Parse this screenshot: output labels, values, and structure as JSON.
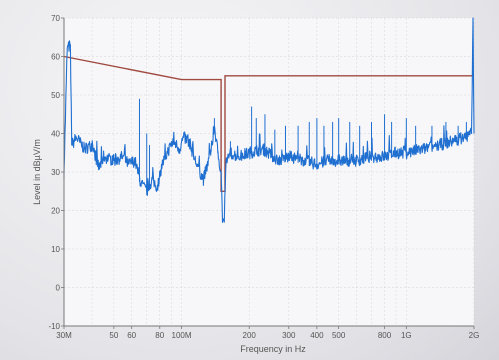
{
  "chart_data": {
    "type": "line",
    "title": "",
    "xlabel": "Frequency in Hz",
    "ylabel": "Level in dBµV/m",
    "x_scale": "log",
    "xlim_hz": [
      30000000,
      2000000000
    ],
    "ylim": [
      -10,
      70
    ],
    "grid": true,
    "y_ticks": [
      {
        "value": 70,
        "label": "70"
      },
      {
        "value": 60,
        "label": "60"
      },
      {
        "value": 50,
        "label": "50"
      },
      {
        "value": 40,
        "label": "40"
      },
      {
        "value": 30,
        "label": "30"
      },
      {
        "value": 20,
        "label": "20"
      },
      {
        "value": 10,
        "label": "10"
      },
      {
        "value": 0,
        "label": "0"
      },
      {
        "value": -10,
        "label": "-10"
      }
    ],
    "x_ticks": [
      {
        "value": 30000000,
        "label": "30M"
      },
      {
        "value": 50000000,
        "label": "50"
      },
      {
        "value": 60000000,
        "label": "60"
      },
      {
        "value": 80000000,
        "label": "80"
      },
      {
        "value": 100000000,
        "label": "100M"
      },
      {
        "value": 200000000,
        "label": "200"
      },
      {
        "value": 300000000,
        "label": "300"
      },
      {
        "value": 400000000,
        "label": "400"
      },
      {
        "value": 500000000,
        "label": "500"
      },
      {
        "value": 800000000,
        "label": "800"
      },
      {
        "value": 1000000000,
        "label": "1G"
      },
      {
        "value": 2000000000,
        "label": "2G"
      }
    ],
    "limit_line": {
      "color": "#a04a40",
      "points": [
        [
          30000000,
          60
        ],
        [
          100000000,
          54
        ],
        [
          150000000,
          54
        ],
        [
          150000000,
          25
        ],
        [
          156000000,
          25
        ],
        [
          156000000,
          55
        ],
        [
          2000000000,
          55
        ]
      ]
    },
    "measurement": {
      "color": "#1f6fd1",
      "points": [
        [
          30000000,
          30
        ],
        [
          31000000,
          62
        ],
        [
          32000000,
          63
        ],
        [
          32500000,
          37
        ],
        [
          34000000,
          39
        ],
        [
          37000000,
          36
        ],
        [
          40000000,
          37
        ],
        [
          43000000,
          31
        ],
        [
          45000000,
          34
        ],
        [
          50000000,
          33
        ],
        [
          55000000,
          34
        ],
        [
          58000000,
          32
        ],
        [
          62000000,
          33
        ],
        [
          66000000,
          27
        ],
        [
          70000000,
          25
        ],
        [
          74000000,
          28
        ],
        [
          78000000,
          26
        ],
        [
          82000000,
          32
        ],
        [
          88000000,
          36
        ],
        [
          92000000,
          38
        ],
        [
          98000000,
          36
        ],
        [
          102000000,
          39
        ],
        [
          108000000,
          38
        ],
        [
          115000000,
          33
        ],
        [
          125000000,
          28
        ],
        [
          135000000,
          35
        ],
        [
          140000000,
          42
        ],
        [
          145000000,
          35
        ],
        [
          150000000,
          30
        ],
        [
          152000000,
          18
        ],
        [
          155000000,
          17
        ],
        [
          158000000,
          33
        ],
        [
          165000000,
          35
        ],
        [
          180000000,
          34
        ],
        [
          200000000,
          35
        ],
        [
          230000000,
          36
        ],
        [
          270000000,
          33
        ],
        [
          300000000,
          34
        ],
        [
          350000000,
          33
        ],
        [
          400000000,
          32
        ],
        [
          450000000,
          33
        ],
        [
          500000000,
          33
        ],
        [
          600000000,
          33
        ],
        [
          700000000,
          34
        ],
        [
          800000000,
          34
        ],
        [
          900000000,
          35
        ],
        [
          1000000000,
          35
        ],
        [
          1200000000,
          36
        ],
        [
          1400000000,
          37
        ],
        [
          1600000000,
          38
        ],
        [
          1800000000,
          39
        ],
        [
          1950000000,
          40
        ],
        [
          1980000000,
          70
        ],
        [
          2000000000,
          40
        ]
      ],
      "spikes": [
        [
          65000000,
          49
        ],
        [
          70000000,
          40
        ],
        [
          72000000,
          37
        ],
        [
          140000000,
          44
        ],
        [
          165000000,
          38
        ],
        [
          205000000,
          47
        ],
        [
          215000000,
          44
        ],
        [
          235000000,
          45
        ],
        [
          260000000,
          41
        ],
        [
          290000000,
          42
        ],
        [
          330000000,
          42
        ],
        [
          370000000,
          43
        ],
        [
          400000000,
          44
        ],
        [
          430000000,
          42
        ],
        [
          470000000,
          43
        ],
        [
          500000000,
          44
        ],
        [
          560000000,
          43
        ],
        [
          620000000,
          42
        ],
        [
          700000000,
          43
        ],
        [
          800000000,
          45
        ],
        [
          860000000,
          43
        ],
        [
          1000000000,
          44
        ],
        [
          1100000000,
          42
        ],
        [
          1300000000,
          42
        ],
        [
          1500000000,
          43
        ],
        [
          1700000000,
          42
        ],
        [
          1850000000,
          43
        ]
      ]
    }
  }
}
